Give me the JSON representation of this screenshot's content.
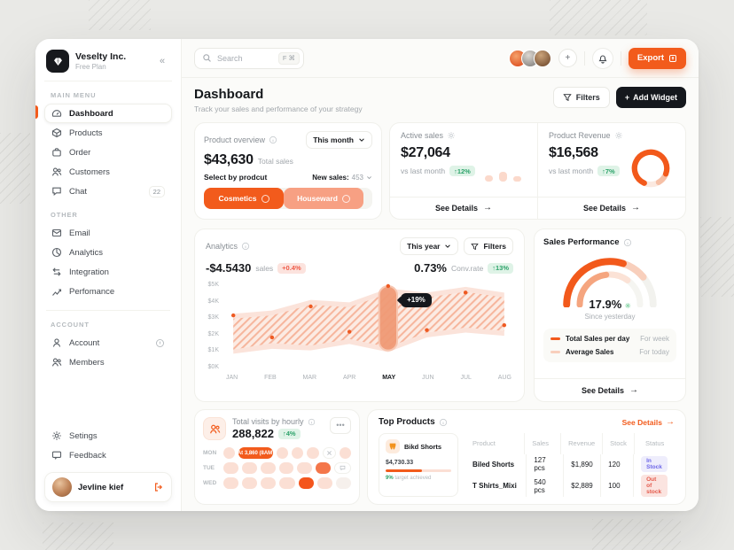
{
  "theme": {
    "accent": "#F25B1C",
    "accent_light": "#F7A083",
    "accent_pale": "#FBDFD4",
    "dark": "#15181D",
    "green_badge_bg": "#DFF3E7",
    "green_badge_text": "#2EA36B",
    "red_badge_bg": "#FCE3DE",
    "red_badge_text": "#EE5A48"
  },
  "sidebar": {
    "company": {
      "name": "Veselty Inc.",
      "plan": "Free Plan"
    },
    "collapse_glyph": "«",
    "sections": [
      {
        "title": "MAIN MENU",
        "items": [
          {
            "label": "Dashboard"
          },
          {
            "label": "Products"
          },
          {
            "label": "Order"
          },
          {
            "label": "Customers"
          },
          {
            "label": "Chat",
            "badge": "22"
          }
        ]
      },
      {
        "title": "OTHER",
        "items": [
          {
            "label": "Email"
          },
          {
            "label": "Analytics"
          },
          {
            "label": "Integration"
          },
          {
            "label": "Perfomance"
          }
        ]
      },
      {
        "title": "ACCOUNT",
        "items": [
          {
            "label": "Account"
          },
          {
            "label": "Members"
          }
        ]
      }
    ],
    "footer_items": [
      {
        "label": "Setings"
      },
      {
        "label": "Feedback"
      }
    ],
    "user": {
      "name": "Jevline kief"
    }
  },
  "topbar": {
    "search_placeholder": "Search",
    "shortcut": "F ⌘",
    "add_glyph": "+",
    "export_label": "Export"
  },
  "header": {
    "title": "Dashboard",
    "subtitle": "Track your sales and performance of your strategy",
    "filters_label": "Filters",
    "add_widget_label": "Add Widget",
    "add_widget_glyph": "+"
  },
  "product_overview": {
    "title": "Product overview",
    "period": "This month",
    "total": "$43,630",
    "total_caption": "Total sales",
    "select_label": "Select by prodcut",
    "new_sales_label": "New sales:",
    "new_sales_value": "453",
    "segments": [
      {
        "label": "Cosmetics"
      },
      {
        "label": "Houseward"
      }
    ]
  },
  "active_sales": {
    "title": "Active sales",
    "value": "$27,064",
    "compare": "vs last month",
    "badge": "↑12%",
    "see_details": "See Details",
    "arrow": "→"
  },
  "product_revenue": {
    "title": "Product Revenue",
    "value": "$16,568",
    "compare": "vs last month",
    "badge": "↑7%",
    "see_details": "See Details",
    "arrow": "→"
  },
  "analytics": {
    "title": "Analytics",
    "period": "This year",
    "filters_label": "Filters",
    "sales_value": "-$4.5430",
    "sales_caption": "sales",
    "sales_badge": "+0.4%",
    "conv_value": "0.73%",
    "conv_caption": "Conv.rate",
    "conv_badge": "↑13%",
    "chart_data": {
      "type": "area",
      "categories": [
        "JAN",
        "FEB",
        "MAR",
        "APR",
        "MAY",
        "JUN",
        "JUL",
        "AUG"
      ],
      "y_ticks": [
        "$5K",
        "$4K",
        "$3K",
        "$2K",
        "$1K",
        "$0K"
      ],
      "ylim": [
        0,
        5
      ],
      "unit": "$K",
      "band_outer_upper": [
        3.3,
        3.5,
        4.15,
        4.0,
        4.85,
        4.6,
        4.95,
        4.6
      ],
      "band_outer_lower": [
        0.85,
        1.15,
        1.05,
        1.45,
        0.95,
        1.85,
        2.15,
        1.95
      ],
      "band_inner_upper": [
        3.0,
        3.2,
        3.85,
        3.7,
        4.55,
        4.3,
        4.65,
        4.3
      ],
      "band_inner_lower": [
        1.1,
        1.5,
        1.35,
        1.75,
        1.25,
        2.15,
        2.45,
        2.25
      ],
      "points": [
        3.2,
        1.85,
        3.75,
        2.2,
        5.0,
        2.3,
        4.6,
        2.6
      ],
      "highlight": {
        "index": 4,
        "top": 5.0,
        "bottom": 1.05,
        "label": "+19%"
      },
      "legend_position": "none",
      "grid": false
    }
  },
  "sales_performance": {
    "title": "Sales Performance",
    "gauge_value": "17.9%",
    "gauge_caption": "Since yesterday",
    "legend": [
      {
        "label": "Total Sales per day",
        "note": "For week"
      },
      {
        "label": "Average Sales",
        "note": "For today"
      }
    ],
    "see_details": "See Details",
    "arrow": "→"
  },
  "total_visits": {
    "title": "Total visits by hourly",
    "value": "288,822",
    "badge": "↑4%",
    "menu_glyph": "•••",
    "peak_label": "At 3,860 (8AM)",
    "row_labels": [
      "MON",
      "TUE",
      "WED"
    ]
  },
  "top_products": {
    "title": "Top Products",
    "see_details": "See Details",
    "arrow": "→",
    "featured": {
      "name": "Bikd Shorts",
      "value": "$4,730.33",
      "target_pct": "9%",
      "target_caption": "target achieved"
    },
    "table": {
      "headers": [
        "Product",
        "Sales",
        "Revenue",
        "Stock",
        "Status"
      ],
      "rows": [
        {
          "product": "Biled Shorts",
          "sales": "127 pcs",
          "revenue": "$1,890",
          "stock": "120",
          "status": "In Stock"
        },
        {
          "product": "T Shirts_Mixi",
          "sales": "540 pcs",
          "revenue": "$2,889",
          "stock": "100",
          "status": "Out of stock"
        }
      ]
    }
  }
}
